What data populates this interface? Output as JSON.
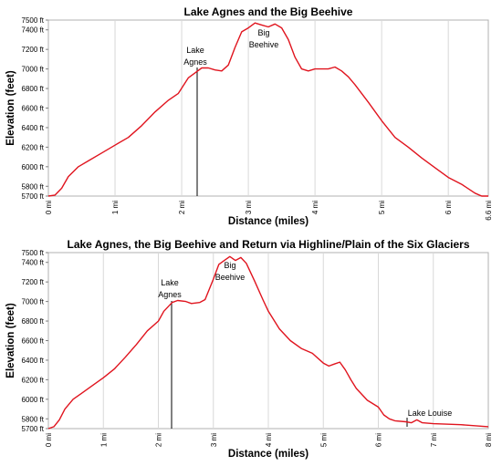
{
  "chart_data": [
    {
      "type": "line",
      "title": "Lake Agnes and the Big Beehive",
      "xlabel": "Distance (miles)",
      "ylabel": "Elevation (feet)",
      "xlim": [
        0,
        6.6
      ],
      "ylim": [
        5700,
        7500
      ],
      "x_ticks": [
        0,
        1,
        2,
        3,
        4,
        5,
        6,
        6.6
      ],
      "x_tick_labels": [
        "0 mi",
        "1 mi",
        "2 mi",
        "3 mi",
        "4 mi",
        "5 mi",
        "6 mi",
        "6.6 mi"
      ],
      "y_ticks": [
        5700,
        5800,
        6000,
        6200,
        6400,
        6600,
        6800,
        7000,
        7200,
        7400,
        7500
      ],
      "y_tick_labels": [
        "5700 ft",
        "5800 ft",
        "6000 ft",
        "6200 ft",
        "6400 ft",
        "6600 ft",
        "6800 ft",
        "7000 ft",
        "7200 ft",
        "7400 ft",
        "7500 ft"
      ],
      "grid": "vertical",
      "line_color": "#e0141e",
      "series": [
        {
          "x": [
            0,
            0.1,
            0.2,
            0.3,
            0.45,
            0.6,
            0.8,
            1.0,
            1.2,
            1.4,
            1.6,
            1.8,
            1.95,
            2.1,
            2.2,
            2.3,
            2.4,
            2.5,
            2.6,
            2.7,
            2.8,
            2.9,
            3.0,
            3.1,
            3.2,
            3.3,
            3.4,
            3.5,
            3.6,
            3.7,
            3.8,
            3.9,
            4.0,
            4.1,
            4.2,
            4.3,
            4.4,
            4.5,
            4.6,
            4.8,
            5.0,
            5.2,
            5.4,
            5.6,
            5.8,
            6.0,
            6.2,
            6.4,
            6.5,
            6.6
          ],
          "y": [
            5700,
            5710,
            5780,
            5900,
            6000,
            6060,
            6140,
            6220,
            6300,
            6420,
            6560,
            6680,
            6750,
            6910,
            6960,
            7010,
            7010,
            6990,
            6980,
            7040,
            7220,
            7380,
            7420,
            7470,
            7450,
            7430,
            7460,
            7420,
            7300,
            7120,
            7000,
            6980,
            7000,
            7000,
            7000,
            7020,
            6980,
            6920,
            6840,
            6660,
            6470,
            6300,
            6200,
            6090,
            5990,
            5890,
            5820,
            5730,
            5700,
            5700
          ]
        }
      ],
      "annotations": [
        {
          "text": [
            "Lake",
            "Agnes"
          ],
          "x": 2.22,
          "y": 7010
        },
        {
          "text": [
            "Big",
            "Beehive"
          ],
          "x": 3.3,
          "y": 7470
        }
      ]
    },
    {
      "type": "line",
      "title": "Lake Agnes, the Big Beehive and Return via Highline/Plain of the Six Glaciers",
      "xlabel": "Distance (miles)",
      "ylabel": "Elevation (feet)",
      "xlim": [
        0,
        8
      ],
      "ylim": [
        5700,
        7500
      ],
      "x_ticks": [
        0,
        1,
        2,
        3,
        4,
        5,
        6,
        7,
        8
      ],
      "x_tick_labels": [
        "0 mi",
        "1 mi",
        "2 mi",
        "3 mi",
        "4 mi",
        "5 mi",
        "6 mi",
        "7 mi",
        "8 mi"
      ],
      "y_ticks": [
        5700,
        5800,
        6000,
        6200,
        6400,
        6600,
        6800,
        7000,
        7200,
        7400,
        7500
      ],
      "y_tick_labels": [
        "5700 ft",
        "5800 ft",
        "6000 ft",
        "6200 ft",
        "6400 ft",
        "6600 ft",
        "6800 ft",
        "7000 ft",
        "7200 ft",
        "7400 ft",
        "7500 ft"
      ],
      "grid": "vertical",
      "line_color": "#e0141e",
      "series": [
        {
          "x": [
            0,
            0.1,
            0.2,
            0.3,
            0.45,
            0.6,
            0.8,
            1.0,
            1.2,
            1.4,
            1.6,
            1.8,
            2.0,
            2.1,
            2.25,
            2.35,
            2.5,
            2.6,
            2.75,
            2.85,
            3.0,
            3.1,
            3.2,
            3.3,
            3.4,
            3.5,
            3.6,
            3.75,
            3.9,
            4.0,
            4.2,
            4.4,
            4.6,
            4.8,
            5.0,
            5.1,
            5.2,
            5.3,
            5.4,
            5.5,
            5.6,
            5.8,
            6.0,
            6.1,
            6.2,
            6.3,
            6.5,
            6.6,
            6.7,
            6.8,
            7.0,
            7.5,
            8.0
          ],
          "y": [
            5700,
            5720,
            5790,
            5900,
            6000,
            6060,
            6140,
            6220,
            6310,
            6430,
            6560,
            6700,
            6800,
            6900,
            6990,
            7010,
            7000,
            6980,
            6990,
            7020,
            7230,
            7380,
            7420,
            7460,
            7420,
            7450,
            7390,
            7210,
            7020,
            6900,
            6720,
            6600,
            6520,
            6470,
            6370,
            6340,
            6360,
            6380,
            6300,
            6200,
            6110,
            5990,
            5920,
            5840,
            5800,
            5780,
            5770,
            5760,
            5790,
            5760,
            5750,
            5740,
            5720
          ]
        }
      ],
      "annotations": [
        {
          "text": [
            "Lake",
            "Agnes"
          ],
          "x": 2.25,
          "y": 7010
        },
        {
          "text": [
            "Big",
            "Beehive"
          ],
          "x": 3.3,
          "y": 7460
        },
        {
          "text": [
            "Lake Louise"
          ],
          "x": 6.55,
          "y": 5780
        }
      ]
    }
  ]
}
